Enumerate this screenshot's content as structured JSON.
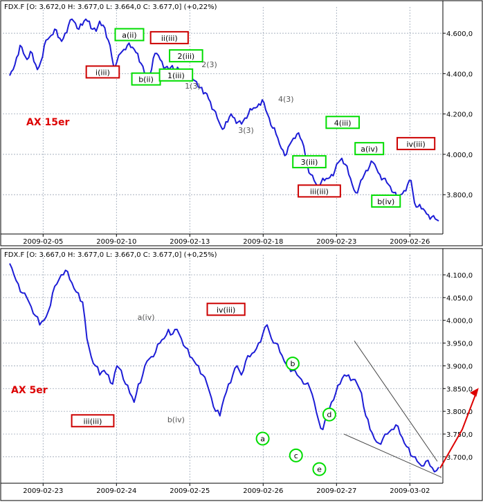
{
  "colors": {
    "price": "#1c1cd6",
    "grid": "#9aa5b5",
    "axis": "#000000",
    "wave_red": "#cc0000",
    "wave_green": "#00dd00",
    "note_gray": "#555555",
    "channel": "#444444",
    "arrow": "#dd0000",
    "chart_title": "#dd0000"
  },
  "chart_data": [
    {
      "type": "line",
      "chart_title": "AX 15er",
      "header": "FDX.F [O: 3.672,0  H: 3.677,0  L: 3.664,0  C: 3.677,0] (+0,22%)",
      "x_ticks": [
        "2009-02-05",
        "2009-02-10",
        "2009-02-13",
        "2009-02-18",
        "2009-02-23",
        "2009-02-26"
      ],
      "y_ticks": [
        "4.600,0",
        "4.400,0",
        "4.200,0",
        "4.000,0",
        "3.800,0"
      ],
      "ylim": [
        3660,
        4710
      ],
      "grid": true,
      "series": [
        {
          "values": [
            4390,
            4420,
            4480,
            4540,
            4500,
            4470,
            4510,
            4460,
            4420,
            4460,
            4540,
            4570,
            4590,
            4620,
            4580,
            4560,
            4600,
            4640,
            4670,
            4650,
            4620,
            4640,
            4670,
            4660,
            4620,
            4610,
            4660,
            4640,
            4580,
            4540,
            4440,
            4460,
            4500,
            4520,
            4540,
            4530,
            4520,
            4500,
            4450,
            4400,
            4390,
            4420,
            4500,
            4490,
            4460,
            4430,
            4420,
            4440,
            4410,
            4420,
            4410,
            4400,
            4380,
            4370,
            4360,
            4330,
            4300,
            4300,
            4260,
            4220,
            4180,
            4140,
            4130,
            4160,
            4200,
            4180,
            4160,
            4150,
            4180,
            4200,
            4220,
            4230,
            4250,
            4270,
            4220,
            4180,
            4130,
            4100,
            4050,
            4020,
            4000,
            4050,
            4080,
            4100,
            4080,
            4040,
            3950,
            3900,
            3870,
            3840,
            3860,
            3870,
            3880,
            3900,
            3920,
            3960,
            3980,
            3950,
            3900,
            3850,
            3810,
            3840,
            3880,
            3920,
            3940,
            3960,
            3930,
            3900,
            3880,
            3860,
            3840,
            3810,
            3780,
            3800,
            3820,
            3850,
            3870,
            3760,
            3740,
            3730,
            3720,
            3700,
            3690,
            3680,
            3670
          ]
        }
      ],
      "annotations": [
        {
          "text": "i(iii)",
          "style": "red",
          "x": 0.3,
          "y": 4410
        },
        {
          "text": "a(ii)",
          "style": "green",
          "x": 0.38,
          "y": 4595
        },
        {
          "text": "b(ii)",
          "style": "green",
          "x": 0.43,
          "y": 4375
        },
        {
          "text": "ii(iii)",
          "style": "red",
          "x": 0.5,
          "y": 4580
        },
        {
          "text": "2(iii)",
          "style": "green",
          "x": 0.55,
          "y": 4490
        },
        {
          "text": "1(iii)",
          "style": "green",
          "x": 0.52,
          "y": 4395
        },
        {
          "text": "1(3)",
          "style": "gray",
          "x": 0.57,
          "y": 4340
        },
        {
          "text": "2(3)",
          "style": "gray",
          "x": 0.62,
          "y": 4445
        },
        {
          "text": "3(3)",
          "style": "gray",
          "x": 0.73,
          "y": 4120
        },
        {
          "text": "4(3)",
          "style": "gray",
          "x": 0.85,
          "y": 4275
        },
        {
          "text": "4(iii)",
          "style": "green",
          "x": 1.02,
          "y": 4160
        },
        {
          "text": "3(iii)",
          "style": "green",
          "x": 0.92,
          "y": 3965
        },
        {
          "text": "iii(iii)",
          "style": "red",
          "x": 0.95,
          "y": 3820
        },
        {
          "text": "a(iv)",
          "style": "green",
          "x": 1.1,
          "y": 4030
        },
        {
          "text": "b(iv)",
          "style": "green",
          "x": 1.15,
          "y": 3770
        },
        {
          "text": "iv(iii)",
          "style": "red",
          "x": 1.24,
          "y": 4055
        }
      ]
    },
    {
      "type": "line",
      "chart_title": "AX 5er",
      "header": "FDX.F [O: 3.667,0  H: 3.677,0  L: 3.667,0  C: 3.677,0] (+0,25%)",
      "x_ticks": [
        "2009-02-23",
        "2009-02-24",
        "2009-02-25",
        "2009-02-26",
        "2009-02-27",
        "2009-03-02"
      ],
      "y_ticks": [
        "4.100,0",
        "4.050,0",
        "4.000,0",
        "3.950,0",
        "3.900,0",
        "3.850,0",
        "3.800,0",
        "3.750,0",
        "3.700,0"
      ],
      "ylim": [
        3648,
        4135
      ],
      "grid": true,
      "series": [
        {
          "values": [
            4125,
            4100,
            4080,
            4060,
            4050,
            4030,
            4010,
            3990,
            4000,
            4020,
            4060,
            4080,
            4100,
            4110,
            4090,
            4070,
            4060,
            4040,
            3960,
            3920,
            3900,
            3880,
            3890,
            3880,
            3860,
            3900,
            3890,
            3860,
            3840,
            3820,
            3860,
            3880,
            3910,
            3920,
            3930,
            3950,
            3960,
            3980,
            3970,
            3980,
            3960,
            3940,
            3920,
            3910,
            3900,
            3880,
            3860,
            3830,
            3800,
            3790,
            3830,
            3860,
            3880,
            3900,
            3880,
            3910,
            3920,
            3930,
            3950,
            3970,
            3990,
            3960,
            3950,
            3930,
            3910,
            3900,
            3890,
            3880,
            3870,
            3860,
            3850,
            3820,
            3780,
            3760,
            3790,
            3820,
            3840,
            3860,
            3880,
            3880,
            3870,
            3860,
            3840,
            3790,
            3760,
            3740,
            3730,
            3740,
            3750,
            3760,
            3770,
            3750,
            3730,
            3720,
            3700,
            3690,
            3680,
            3690,
            3680,
            3667,
            3677
          ]
        }
      ],
      "annotations": [
        {
          "text": "iii(iii)",
          "style": "red",
          "x": 0.27,
          "y": 3780
        },
        {
          "text": "a(iv)",
          "style": "gray",
          "x": 0.43,
          "y": 4007
        },
        {
          "text": "b(iv)",
          "style": "gray",
          "x": 0.52,
          "y": 3782
        },
        {
          "text": "iv(iii)",
          "style": "red",
          "x": 0.67,
          "y": 4025
        },
        {
          "text": "a",
          "style": "circle",
          "x": 0.78,
          "y": 3740
        },
        {
          "text": "b",
          "style": "circle",
          "x": 0.87,
          "y": 3905
        },
        {
          "text": "c",
          "style": "circle",
          "x": 0.88,
          "y": 3703
        },
        {
          "text": "d",
          "style": "circle",
          "x": 0.98,
          "y": 3793
        },
        {
          "text": "e",
          "style": "circle",
          "x": 0.95,
          "y": 3673
        }
      ]
    }
  ]
}
